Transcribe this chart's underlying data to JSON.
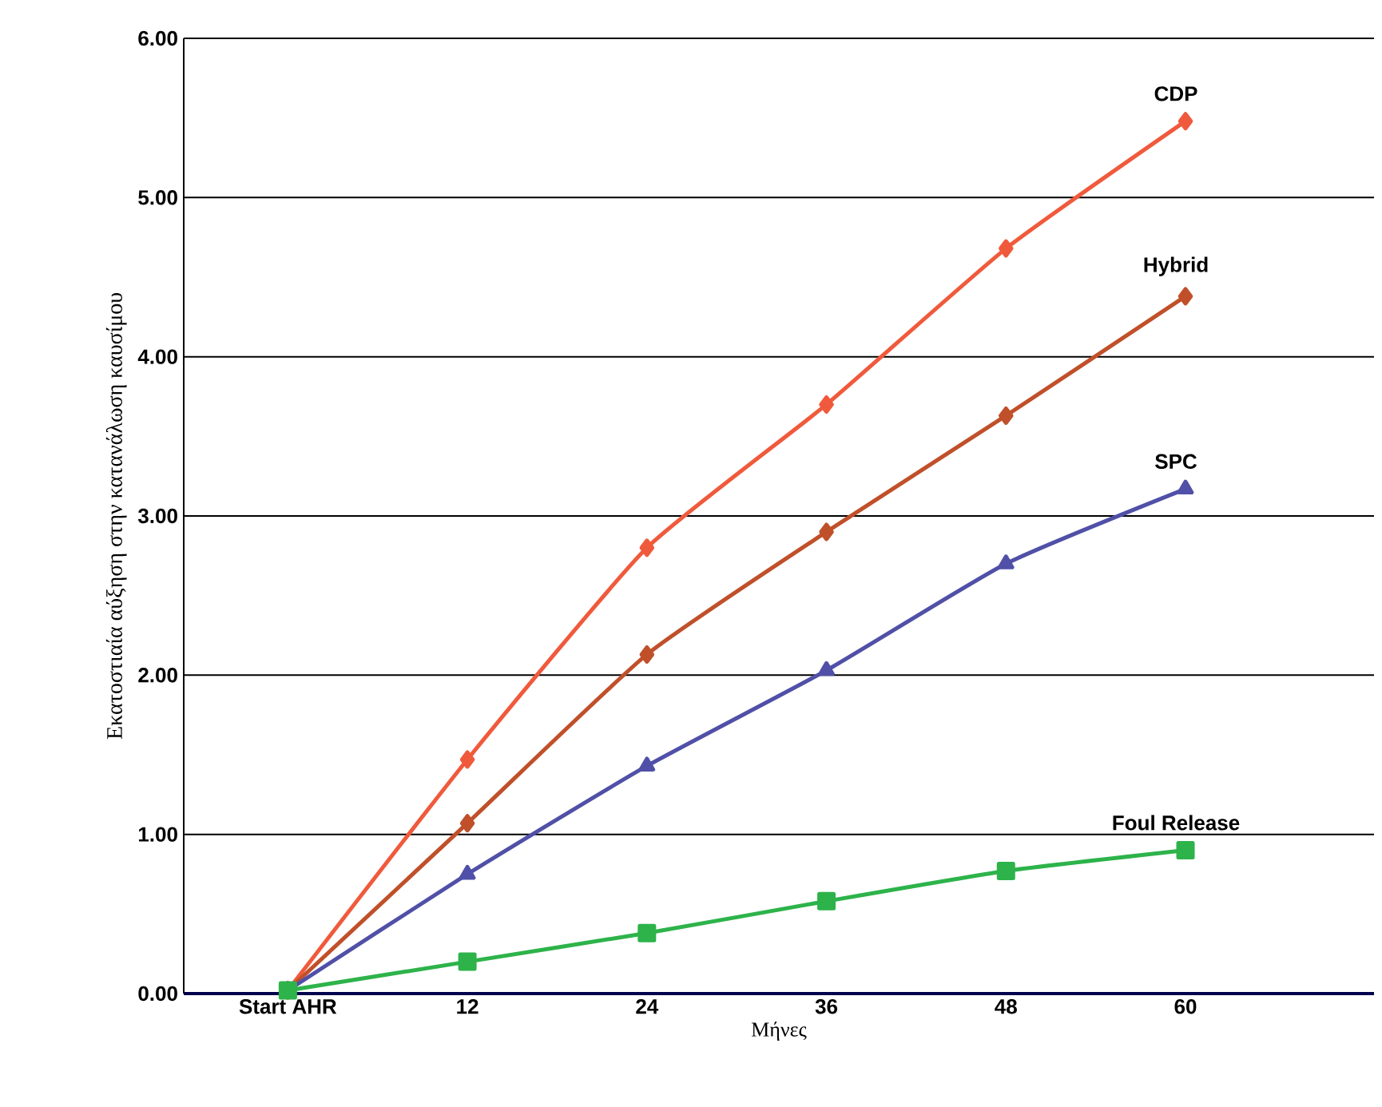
{
  "chart_data": {
    "type": "line",
    "xlabel": "Μήνες",
    "ylabel": "Εκατοστιαία αύξηση στην κατανάλωση καυσίμου",
    "categories": [
      "Start  AHR",
      "12",
      "24",
      "36",
      "48",
      "60"
    ],
    "ylim": [
      0,
      6
    ],
    "yticks": [
      {
        "value": 0,
        "label": "0.00"
      },
      {
        "value": 1,
        "label": "1.00"
      },
      {
        "value": 2,
        "label": "2.00"
      },
      {
        "value": 3,
        "label": "3.00"
      },
      {
        "value": 4,
        "label": "4.00"
      },
      {
        "value": 5,
        "label": "5.00"
      },
      {
        "value": 6,
        "label": "6.00"
      }
    ],
    "grid": "y",
    "series": [
      {
        "name": "CDP",
        "color": "#f05a3c",
        "marker": "diamond",
        "values": [
          0.02,
          1.47,
          2.8,
          3.7,
          4.68,
          5.48
        ]
      },
      {
        "name": "Hybrid",
        "color": "#c0502a",
        "marker": "diamond",
        "values": [
          0.02,
          1.07,
          2.13,
          2.9,
          3.63,
          4.38
        ]
      },
      {
        "name": "SPC",
        "color": "#5050a8",
        "marker": "triangle",
        "values": [
          0.02,
          0.75,
          1.43,
          2.03,
          2.7,
          3.17
        ]
      },
      {
        "name": "Foul Release",
        "color": "#2db34a",
        "marker": "square",
        "values": [
          0.02,
          0.2,
          0.38,
          0.58,
          0.77,
          0.9
        ]
      }
    ]
  }
}
